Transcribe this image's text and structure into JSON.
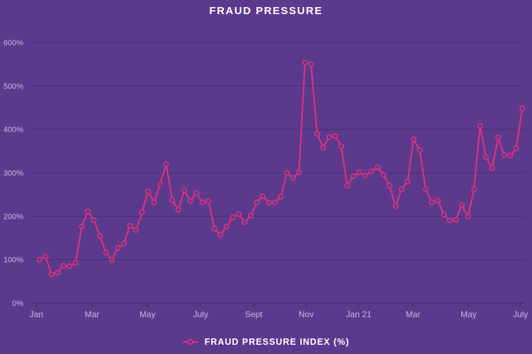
{
  "title": "FRAUD PRESSURE",
  "legend": {
    "label": "FRAUD PRESSURE INDEX (%)"
  },
  "colors": {
    "background": "#5b3a8e",
    "line": "#e7307b",
    "grid": "rgba(0,0,0,0.22)",
    "axis": "rgba(0,0,0,0.30)",
    "tick_label": "#c6b6dd",
    "title_text": "#ffffff"
  },
  "chart_data": {
    "type": "line",
    "title": "FRAUD PRESSURE",
    "ylabel": "",
    "xlabel": "",
    "ylim": [
      0,
      620
    ],
    "grid": "horizontal-only",
    "legend_position": "bottom-center",
    "marker": "open-circle",
    "y_ticks": [
      {
        "label": "600%",
        "value": 600
      },
      {
        "label": "500%",
        "value": 500
      },
      {
        "label": "400%",
        "value": 400
      },
      {
        "label": "300%",
        "value": 300
      },
      {
        "label": "200%",
        "value": 200
      },
      {
        "label": "100%",
        "value": 100
      },
      {
        "label": "0%",
        "value": 0
      }
    ],
    "x_ticks": [
      {
        "label": "Jan",
        "pos": -0.5
      },
      {
        "label": "Mar",
        "pos": 8.7
      },
      {
        "label": "May",
        "pos": 17.9
      },
      {
        "label": "July",
        "pos": 26.7
      },
      {
        "label": "Sept",
        "pos": 35.5
      },
      {
        "label": "Nov",
        "pos": 44.2
      },
      {
        "label": "Jan 21",
        "pos": 52.9
      },
      {
        "label": "Mar",
        "pos": 61.9
      },
      {
        "label": "May",
        "pos": 71.1
      },
      {
        "label": "July",
        "pos": 79.7
      }
    ],
    "series": [
      {
        "name": "FRAUD PRESSURE INDEX (%)",
        "values": [
          100,
          107,
          66,
          70,
          86,
          85,
          93,
          176,
          211,
          191,
          155,
          116,
          100,
          127,
          137,
          178,
          168,
          209,
          257,
          232,
          274,
          320,
          237,
          215,
          259,
          235,
          253,
          232,
          235,
          171,
          157,
          176,
          197,
          205,
          186,
          201,
          232,
          246,
          231,
          232,
          245,
          300,
          288,
          301,
          554,
          550,
          390,
          358,
          382,
          385,
          361,
          270,
          292,
          301,
          294,
          303,
          313,
          295,
          270,
          223,
          262,
          280,
          377,
          352,
          262,
          232,
          236,
          204,
          190,
          192,
          226,
          199,
          262,
          408,
          336,
          311,
          381,
          341,
          339,
          356,
          448
        ]
      }
    ]
  }
}
